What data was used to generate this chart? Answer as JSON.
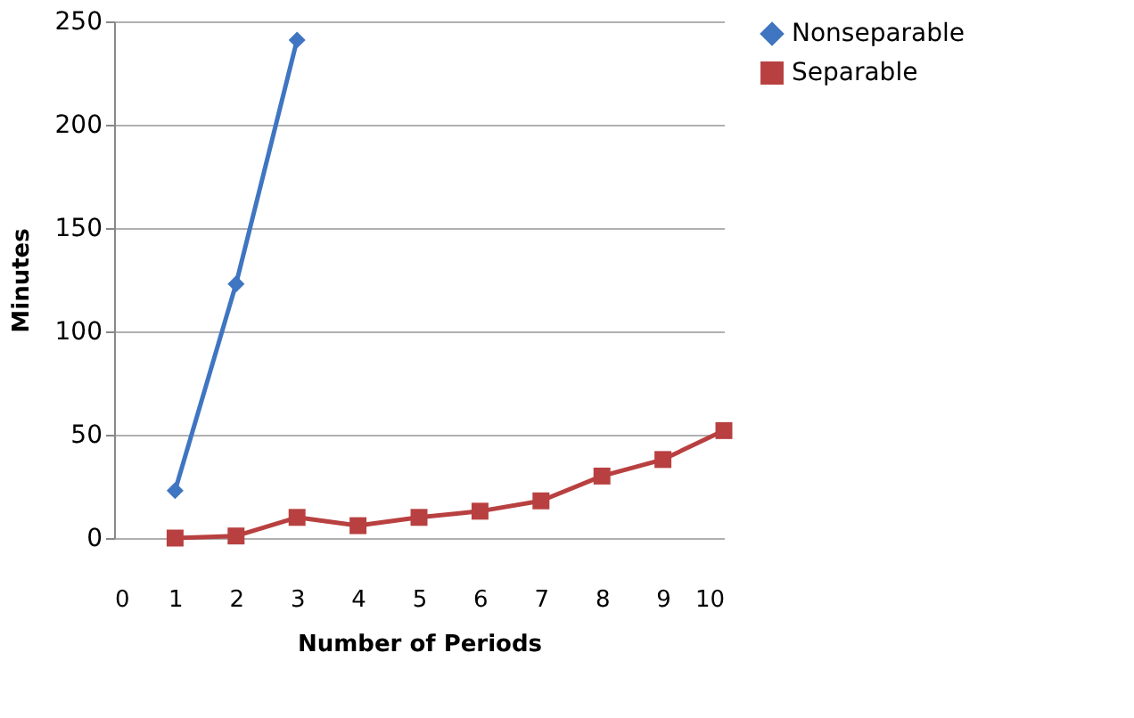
{
  "chart_data": {
    "type": "line",
    "xlabel": "Number of Periods",
    "ylabel": "Minutes",
    "x": [
      1,
      2,
      3,
      4,
      5,
      6,
      7,
      8,
      9,
      10
    ],
    "series": [
      {
        "name": "Nonseparable",
        "color": "#3f75c1",
        "marker": "diamond",
        "x": [
          1,
          2,
          3
        ],
        "values": [
          23,
          123,
          241
        ]
      },
      {
        "name": "Separable",
        "color": "#b94040",
        "marker": "square",
        "values": [
          0,
          1,
          10,
          6,
          10,
          13,
          18,
          30,
          38,
          52
        ]
      }
    ],
    "xlim": [
      0,
      10
    ],
    "xticks": [
      0,
      1,
      2,
      3,
      4,
      5,
      6,
      7,
      8,
      9,
      10
    ],
    "ylim": [
      0,
      250
    ],
    "yticks": [
      0,
      50,
      100,
      150,
      200,
      250
    ],
    "grid": "y",
    "legend": "right",
    "line_style": "solid"
  }
}
